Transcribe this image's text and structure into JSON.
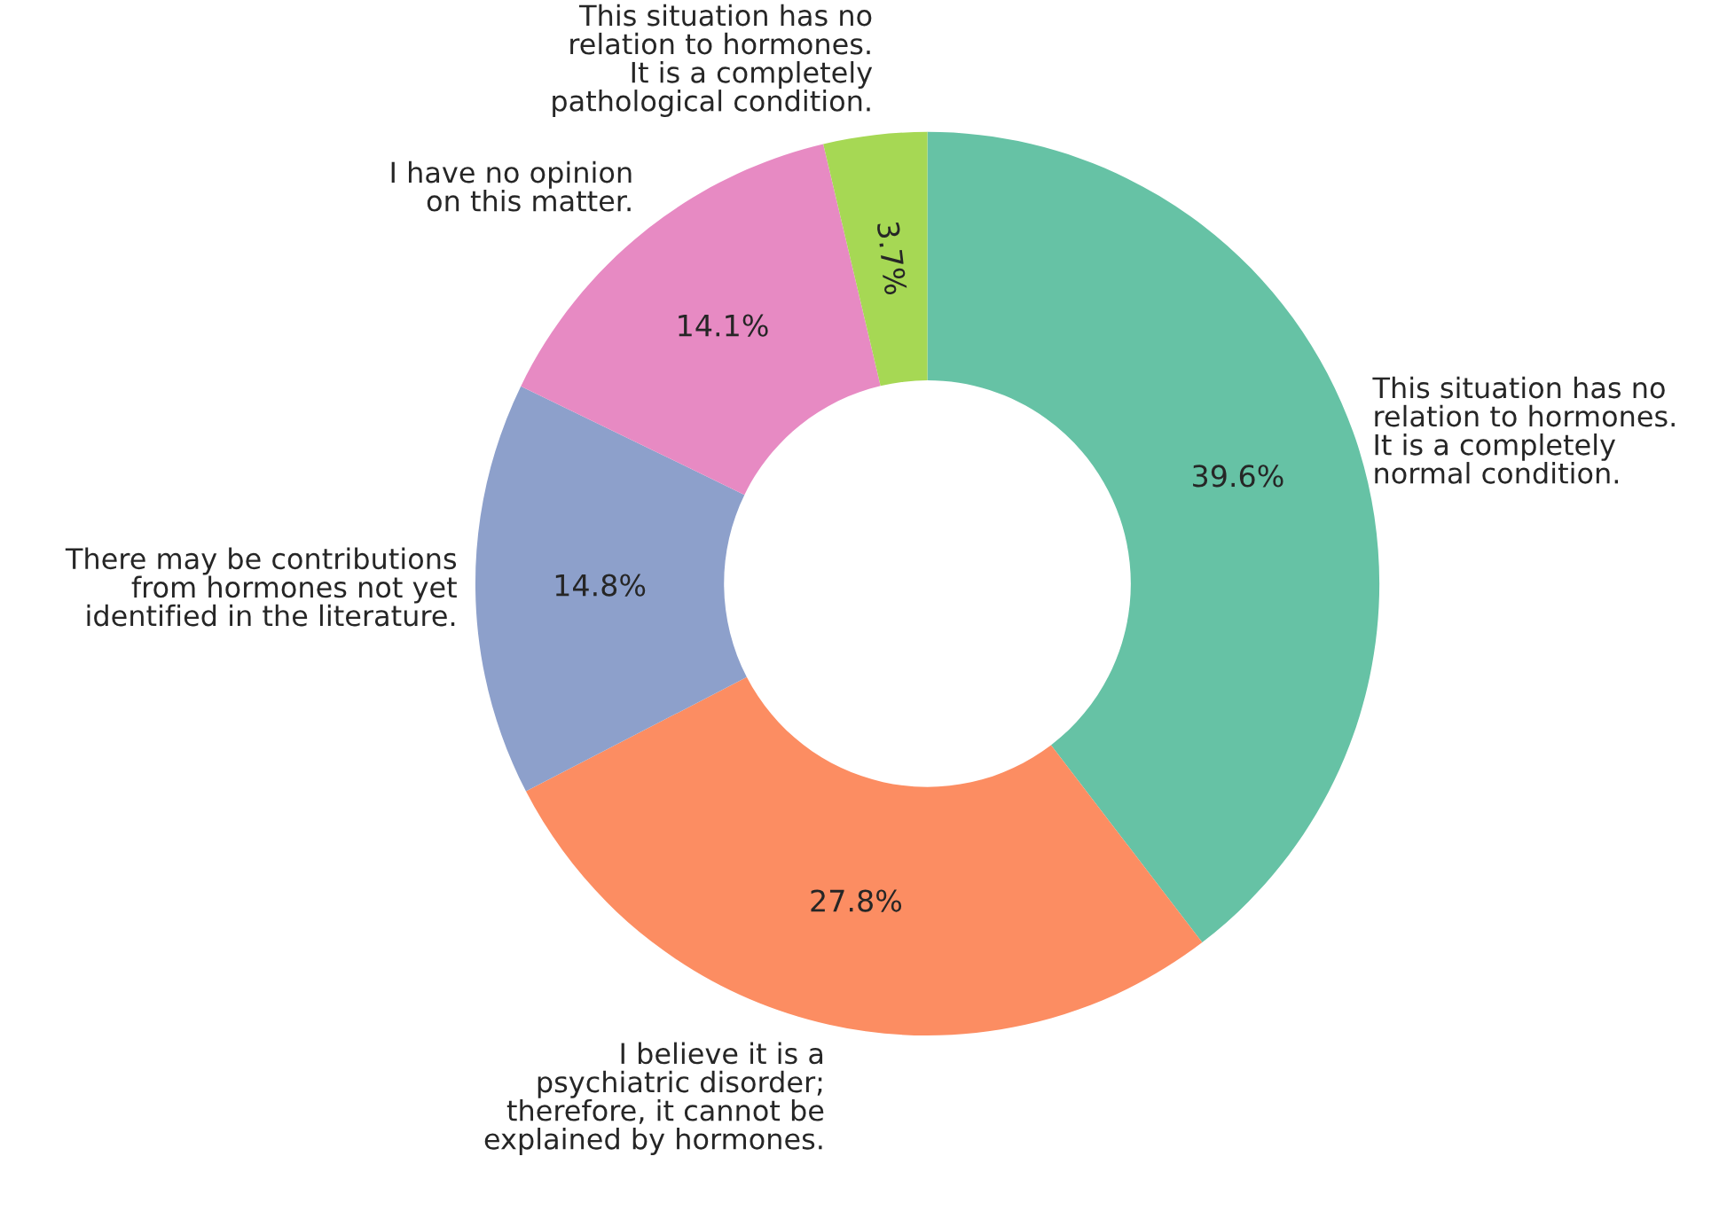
{
  "chart_data": {
    "type": "donut",
    "categories": [
      "This situation has no\nrelation to hormones.\nIt is a completely\nnormal condition.",
      "I believe it is a\npsychiatric disorder;\ntherefore, it cannot be\nexplained by hormones.",
      "There may be contributions\nfrom hormones not yet\nidentified in the literature.",
      "I have no opinion\non this matter.",
      "This situation has no\nrelation to hormones.\nIt is a completely\npathological condition."
    ],
    "values": [
      39.6,
      27.8,
      14.8,
      14.1,
      3.7
    ],
    "value_labels": [
      "39.6%",
      "27.8%",
      "14.8%",
      "14.1%",
      "3.7%"
    ],
    "colors": [
      "#66c2a5",
      "#fc8d62",
      "#8da0cb",
      "#e78ac3",
      "#a6d854"
    ]
  }
}
